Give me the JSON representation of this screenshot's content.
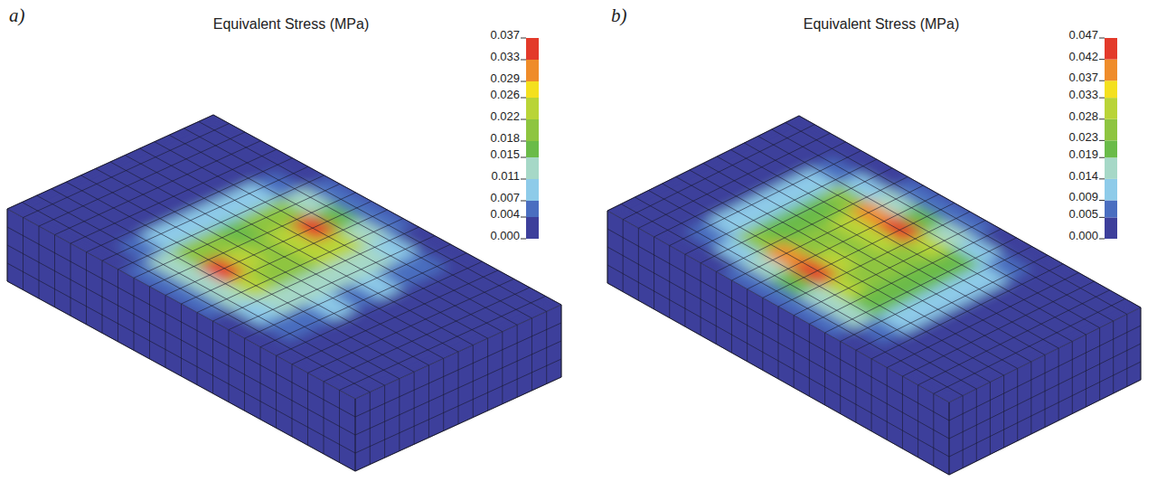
{
  "chart_data": [
    {
      "type": "heatmap",
      "panel": "a)",
      "title": "Equivalent Stress (MPa)",
      "cells": [
        [
          0,
          0,
          0,
          0.002,
          0.004,
          0.005,
          0.004,
          0.003,
          0.001,
          0,
          0,
          0
        ],
        [
          0,
          0,
          0.002,
          0.006,
          0.011,
          0.014,
          0.012,
          0.008,
          0.004,
          0.001,
          0,
          0
        ],
        [
          0,
          0,
          0.003,
          0.009,
          0.02,
          0.035,
          0.022,
          0.013,
          0.006,
          0.002,
          0,
          0
        ],
        [
          0,
          0,
          0.003,
          0.01,
          0.018,
          0.022,
          0.02,
          0.014,
          0.007,
          0.002,
          0,
          0
        ],
        [
          0,
          0,
          0.003,
          0.009,
          0.016,
          0.019,
          0.018,
          0.013,
          0.006,
          0.002,
          0,
          0
        ],
        [
          0,
          0,
          0.003,
          0.01,
          0.019,
          0.024,
          0.022,
          0.014,
          0.007,
          0.002,
          0,
          0
        ],
        [
          0,
          0,
          0.003,
          0.009,
          0.021,
          0.036,
          0.023,
          0.013,
          0.006,
          0.002,
          0,
          0
        ],
        [
          0,
          0,
          0.002,
          0.006,
          0.012,
          0.015,
          0.013,
          0.008,
          0.004,
          0.001,
          0,
          0
        ],
        [
          0,
          0,
          0,
          0.002,
          0.004,
          0.006,
          0.005,
          0.003,
          0.001,
          0,
          0,
          0
        ]
      ],
      "colorbar_range": [
        0,
        0.037
      ],
      "colorbar_ticks": [
        {
          "value": 0,
          "label": "0.000"
        },
        0.004,
        0.007,
        0.011,
        0.015,
        0.018,
        0.022,
        0.026,
        0.029,
        0.033,
        0.037
      ],
      "colors": [
        "#3d3f9b",
        "#4a6ec0",
        "#8ecbe9",
        "#a6d8c7",
        "#6abb49",
        "#8ec540",
        "#b9d437",
        "#f4e01e",
        "#ef8c2a",
        "#e33a2a"
      ]
    },
    {
      "type": "heatmap",
      "panel": "b)",
      "title": "Equivalent Stress (MPa)",
      "cells": [
        [
          0,
          0,
          0.002,
          0.004,
          0.006,
          0.007,
          0.006,
          0.005,
          0.003,
          0.001,
          0,
          0
        ],
        [
          0,
          0.002,
          0.006,
          0.012,
          0.017,
          0.019,
          0.018,
          0.014,
          0.008,
          0.003,
          0,
          0
        ],
        [
          0,
          0.003,
          0.01,
          0.024,
          0.038,
          0.042,
          0.03,
          0.02,
          0.011,
          0.004,
          0.001,
          0
        ],
        [
          0,
          0.003,
          0.011,
          0.021,
          0.027,
          0.028,
          0.026,
          0.02,
          0.012,
          0.004,
          0.001,
          0
        ],
        [
          0,
          0.003,
          0.011,
          0.019,
          0.024,
          0.025,
          0.024,
          0.019,
          0.011,
          0.004,
          0.001,
          0
        ],
        [
          0,
          0.003,
          0.011,
          0.022,
          0.028,
          0.03,
          0.027,
          0.02,
          0.012,
          0.004,
          0.001,
          0
        ],
        [
          0,
          0.003,
          0.01,
          0.025,
          0.04,
          0.043,
          0.031,
          0.02,
          0.011,
          0.004,
          0.001,
          0
        ],
        [
          0,
          0.002,
          0.006,
          0.012,
          0.017,
          0.019,
          0.017,
          0.013,
          0.007,
          0.003,
          0,
          0
        ],
        [
          0,
          0,
          0.002,
          0.004,
          0.006,
          0.007,
          0.006,
          0.004,
          0.002,
          0.001,
          0,
          0
        ]
      ],
      "colorbar_range": [
        0,
        0.047
      ],
      "colorbar_ticks": [
        {
          "value": 0,
          "label": "0.000"
        },
        0.005,
        0.009,
        0.014,
        0.019,
        0.023,
        0.028,
        0.033,
        0.037,
        0.042,
        0.047
      ],
      "colors": [
        "#3d3f9b",
        "#4a6ec0",
        "#8ecbe9",
        "#a6d8c7",
        "#6abb49",
        "#8ec540",
        "#b9d437",
        "#f4e01e",
        "#ef8c2a",
        "#e33a2a"
      ]
    }
  ]
}
